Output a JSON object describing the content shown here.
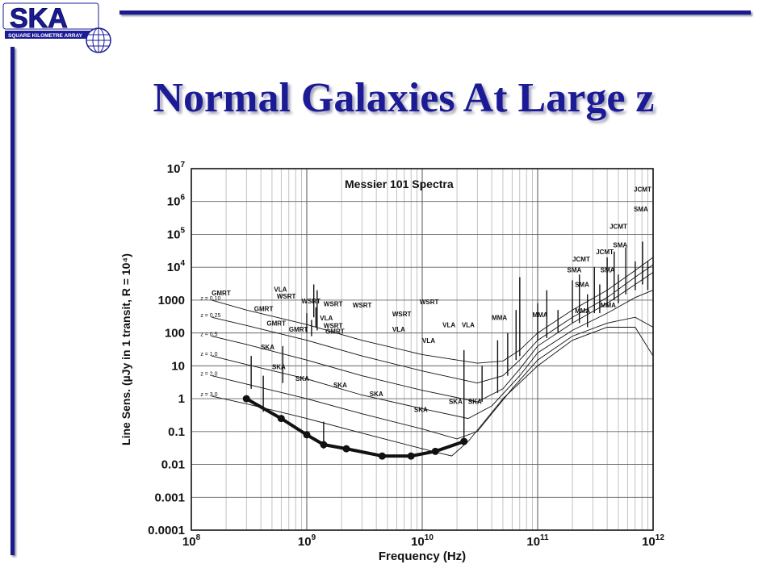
{
  "logo": {
    "text": "SKA",
    "subtext": "SQUARE KILOMETRE ARRAY"
  },
  "slide": {
    "title": "Normal Galaxies At Large z"
  },
  "colors": {
    "brand_blue": "#1b1b96",
    "rule_blue": "#1a1a8c",
    "plot_ink": "#111111"
  },
  "chart_data": {
    "type": "line",
    "title": "Messier 101 Spectra",
    "xlabel": "Frequency (Hz)",
    "ylabel": "Line Sens. (µJy in 1 transit, R = 10⁴)",
    "x_scale": "log",
    "y_scale": "log",
    "xlim": [
      100000000,
      1000000000000
    ],
    "ylim": [
      0.0001,
      10000000
    ],
    "grid": true,
    "x_ticks": [
      {
        "value": 100000000,
        "base": "10",
        "exp": "8"
      },
      {
        "value": 1000000000,
        "base": "10",
        "exp": "9"
      },
      {
        "value": 10000000000,
        "base": "10",
        "exp": "10"
      },
      {
        "value": 100000000000,
        "base": "10",
        "exp": "11"
      },
      {
        "value": 1000000000000,
        "base": "10",
        "exp": "12"
      }
    ],
    "y_ticks": [
      {
        "value": 0.0001,
        "base": "0.0001",
        "exp": ""
      },
      {
        "value": 0.001,
        "base": "0.001",
        "exp": ""
      },
      {
        "value": 0.01,
        "base": "0.01",
        "exp": ""
      },
      {
        "value": 0.1,
        "base": "0.1",
        "exp": ""
      },
      {
        "value": 1,
        "base": "1",
        "exp": ""
      },
      {
        "value": 10,
        "base": "10",
        "exp": ""
      },
      {
        "value": 100,
        "base": "100",
        "exp": ""
      },
      {
        "value": 1000,
        "base": "1000",
        "exp": ""
      },
      {
        "value": 10000,
        "base": "10",
        "exp": "4"
      },
      {
        "value": 100000,
        "base": "10",
        "exp": "5"
      },
      {
        "value": 1000000,
        "base": "10",
        "exp": "6"
      },
      {
        "value": 10000000,
        "base": "10",
        "exp": "7"
      }
    ],
    "series": [
      {
        "name": "z = 0.10",
        "points": [
          [
            150000000,
            1000
          ],
          [
            300000000,
            500
          ],
          [
            1000000000,
            180
          ],
          [
            3000000000,
            60
          ],
          [
            10000000000,
            22
          ],
          [
            30000000000,
            12
          ],
          [
            50000000000,
            14
          ],
          [
            70000000000,
            30
          ],
          [
            100000000000,
            100
          ],
          [
            200000000000,
            500
          ],
          [
            400000000000,
            2000
          ],
          [
            700000000000,
            8000
          ],
          [
            1000000000000,
            20000
          ]
        ]
      },
      {
        "name": "z = 0.25",
        "points": [
          [
            150000000,
            300
          ],
          [
            300000000,
            170
          ],
          [
            1000000000,
            60
          ],
          [
            3000000000,
            20
          ],
          [
            10000000000,
            7
          ],
          [
            30000000000,
            3
          ],
          [
            50000000000,
            5
          ],
          [
            70000000000,
            15
          ],
          [
            100000000000,
            60
          ],
          [
            200000000000,
            300
          ],
          [
            400000000000,
            1200
          ],
          [
            700000000000,
            5000
          ],
          [
            1000000000000,
            12000
          ]
        ]
      },
      {
        "name": "z = 0.5",
        "points": [
          [
            150000000,
            80
          ],
          [
            300000000,
            45
          ],
          [
            1000000000,
            15
          ],
          [
            3000000000,
            5
          ],
          [
            10000000000,
            1.8
          ],
          [
            30000000000,
            0.8
          ],
          [
            50000000000,
            2
          ],
          [
            70000000000,
            8
          ],
          [
            100000000000,
            40
          ],
          [
            200000000000,
            200
          ],
          [
            400000000000,
            800
          ],
          [
            700000000000,
            3000
          ],
          [
            1000000000000,
            7000
          ]
        ]
      },
      {
        "name": "z = 1.0",
        "points": [
          [
            150000000,
            20
          ],
          [
            300000000,
            11
          ],
          [
            1000000000,
            4
          ],
          [
            3000000000,
            1.3
          ],
          [
            10000000000,
            0.5
          ],
          [
            25000000000,
            0.25
          ],
          [
            40000000000,
            0.6
          ],
          [
            70000000000,
            5
          ],
          [
            100000000000,
            25
          ],
          [
            200000000000,
            120
          ],
          [
            400000000000,
            400
          ],
          [
            700000000000,
            1200
          ],
          [
            1000000000000,
            2000
          ]
        ]
      },
      {
        "name": "z = 2.0",
        "points": [
          [
            150000000,
            5
          ],
          [
            300000000,
            2.8
          ],
          [
            1000000000,
            1
          ],
          [
            3000000000,
            0.35
          ],
          [
            10000000000,
            0.12
          ],
          [
            20000000000,
            0.06
          ],
          [
            30000000000,
            0.1
          ],
          [
            60000000000,
            2
          ],
          [
            100000000000,
            15
          ],
          [
            200000000000,
            80
          ],
          [
            400000000000,
            200
          ],
          [
            700000000000,
            300
          ],
          [
            1000000000000,
            150
          ]
        ]
      },
      {
        "name": "z = 3.0",
        "points": [
          [
            150000000,
            1.2
          ],
          [
            300000000,
            0.7
          ],
          [
            1000000000,
            0.25
          ],
          [
            3000000000,
            0.09
          ],
          [
            10000000000,
            0.03
          ],
          [
            18000000000,
            0.018
          ],
          [
            25000000000,
            0.05
          ],
          [
            50000000000,
            1
          ],
          [
            100000000000,
            10
          ],
          [
            200000000000,
            60
          ],
          [
            400000000000,
            150
          ],
          [
            700000000000,
            150
          ],
          [
            1000000000000,
            20
          ]
        ]
      },
      {
        "name": "SKA",
        "points": [
          [
            300000000,
            1
          ],
          [
            600000000,
            0.25
          ],
          [
            1000000000,
            0.08
          ],
          [
            1400000000,
            0.04
          ],
          [
            2200000000,
            0.03
          ],
          [
            4500000000,
            0.018
          ],
          [
            8000000000,
            0.018
          ],
          [
            13000000000,
            0.025
          ],
          [
            23000000000,
            0.05
          ]
        ]
      }
    ],
    "curve_labels": [
      {
        "text": "z = 0.10",
        "x": 120000000,
        "y": 1000
      },
      {
        "text": "z = 0.25",
        "x": 120000000,
        "y": 300
      },
      {
        "text": "z = 0.5",
        "x": 120000000,
        "y": 80
      },
      {
        "text": "z = 1.0",
        "x": 120000000,
        "y": 20
      },
      {
        "text": "z = 2.0",
        "x": 120000000,
        "y": 5
      },
      {
        "text": "z = 3.0",
        "x": 120000000,
        "y": 1.2
      }
    ],
    "annotations": [
      {
        "text": "GMRT",
        "x": 150000000,
        "y": 1400
      },
      {
        "text": "VLA",
        "x": 520000000,
        "y": 1800
      },
      {
        "text": "WSRT",
        "x": 550000000,
        "y": 1100
      },
      {
        "text": "WSRT",
        "x": 900000000,
        "y": 800
      },
      {
        "text": "GMRT",
        "x": 350000000,
        "y": 470
      },
      {
        "text": "GMRT",
        "x": 450000000,
        "y": 170
      },
      {
        "text": "GMRT",
        "x": 700000000,
        "y": 110
      },
      {
        "text": "WSRT",
        "x": 1400000000,
        "y": 650
      },
      {
        "text": "VLA",
        "x": 1300000000,
        "y": 240
      },
      {
        "text": "WSRT",
        "x": 1400000000,
        "y": 140
      },
      {
        "text": "GMRT",
        "x": 1450000000,
        "y": 95
      },
      {
        "text": "WSRT",
        "x": 2500000000,
        "y": 600
      },
      {
        "text": "WSRT",
        "x": 5500000000,
        "y": 320
      },
      {
        "text": "VLA",
        "x": 5500000000,
        "y": 110
      },
      {
        "text": "WSRT",
        "x": 9500000000,
        "y": 750
      },
      {
        "text": "VLA",
        "x": 10000000000,
        "y": 50
      },
      {
        "text": "VLA",
        "x": 15000000000,
        "y": 150
      },
      {
        "text": "VLA",
        "x": 22000000000,
        "y": 150
      },
      {
        "text": "MMA",
        "x": 40000000000,
        "y": 250
      },
      {
        "text": "MMA",
        "x": 90000000000,
        "y": 300
      },
      {
        "text": "SKA",
        "x": 400000000,
        "y": 32
      },
      {
        "text": "SKA",
        "x": 500000000,
        "y": 8
      },
      {
        "text": "SKA",
        "x": 800000000,
        "y": 3.5
      },
      {
        "text": "SKA",
        "x": 1700000000,
        "y": 2.2
      },
      {
        "text": "SKA",
        "x": 3500000000,
        "y": 1.2
      },
      {
        "text": "SKA",
        "x": 8500000000,
        "y": 0.4
      },
      {
        "text": "SKA",
        "x": 17000000000,
        "y": 0.7
      },
      {
        "text": "SKA",
        "x": 25000000000,
        "y": 0.7
      },
      {
        "text": "SMA",
        "x": 180000000000,
        "y": 7000
      },
      {
        "text": "JCMT",
        "x": 200000000000,
        "y": 15000
      },
      {
        "text": "SMA",
        "x": 210000000000,
        "y": 2500
      },
      {
        "text": "MMA",
        "x": 210000000000,
        "y": 400
      },
      {
        "text": "JCMT",
        "x": 320000000000,
        "y": 25000
      },
      {
        "text": "SMA",
        "x": 350000000000,
        "y": 7000
      },
      {
        "text": "MMA",
        "x": 350000000000,
        "y": 600
      },
      {
        "text": "JCMT",
        "x": 420000000000,
        "y": 150000
      },
      {
        "text": "SMA",
        "x": 450000000000,
        "y": 40000
      },
      {
        "text": "SMA",
        "x": 680000000000,
        "y": 500000
      },
      {
        "text": "JCMT",
        "x": 680000000000,
        "y": 2000000
      }
    ],
    "spikes": [
      [
        330000000,
        2,
        20
      ],
      [
        420000000,
        0.4,
        5
      ],
      [
        620000000,
        3,
        40
      ],
      [
        1000000000,
        100,
        400
      ],
      [
        1100000000,
        80,
        250
      ],
      [
        1150000000,
        300,
        3000
      ],
      [
        1200000000,
        150,
        600
      ],
      [
        1230000000,
        120,
        2000
      ],
      [
        1400000000,
        0.03,
        0.2
      ],
      [
        23000000000,
        0.05,
        30
      ],
      [
        33000000000,
        0.8,
        10
      ],
      [
        45000000000,
        1.5,
        60
      ],
      [
        55000000000,
        5,
        100
      ],
      [
        65000000000,
        15,
        500
      ],
      [
        70000000000,
        20,
        5000
      ],
      [
        100000000000,
        60,
        800
      ],
      [
        120000000000,
        70,
        2000
      ],
      [
        150000000000,
        100,
        500
      ],
      [
        200000000000,
        200,
        4000
      ],
      [
        230000000000,
        200,
        6000
      ],
      [
        270000000000,
        150,
        1500
      ],
      [
        310000000000,
        400,
        10000
      ],
      [
        345000000000,
        400,
        3000
      ],
      [
        400000000000,
        600,
        20000
      ],
      [
        460000000000,
        1000,
        30000
      ],
      [
        500000000000,
        800,
        6000
      ],
      [
        580000000000,
        1500,
        40000
      ],
      [
        700000000000,
        2000,
        15000
      ],
      [
        810000000000,
        3000,
        60000
      ],
      [
        900000000000,
        2000,
        15000
      ]
    ]
  }
}
